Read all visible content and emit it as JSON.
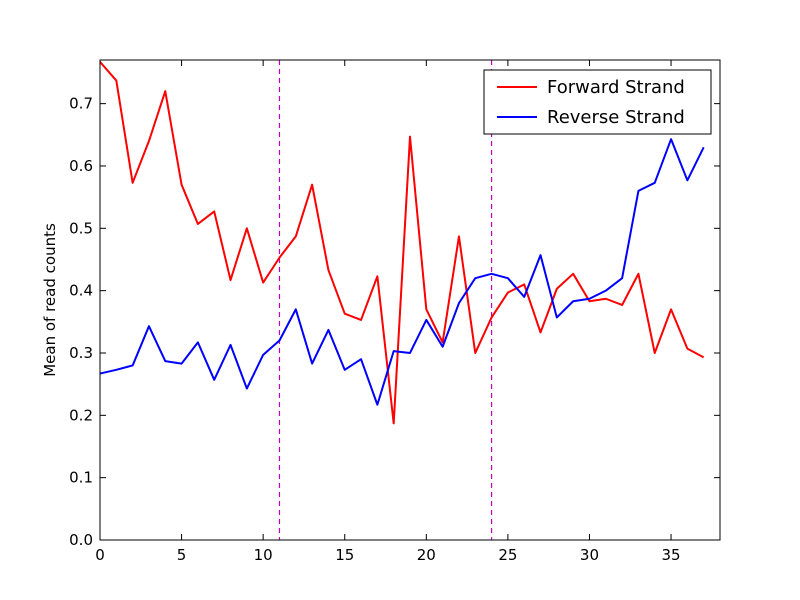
{
  "chart_data": {
    "type": "line",
    "title": "",
    "xlabel": "",
    "ylabel": "Mean of read counts",
    "xlim": [
      0,
      38
    ],
    "ylim": [
      0.0,
      0.77
    ],
    "xticks": [
      0,
      5,
      10,
      15,
      20,
      25,
      30,
      35
    ],
    "yticks": [
      0.0,
      0.1,
      0.2,
      0.3,
      0.4,
      0.5,
      0.6,
      0.7
    ],
    "xtick_labels": [
      "0",
      "5",
      "10",
      "15",
      "20",
      "25",
      "30",
      "35"
    ],
    "ytick_labels": [
      "0.0",
      "0.1",
      "0.2",
      "0.3",
      "0.4",
      "0.5",
      "0.6",
      "0.7"
    ],
    "grid": false,
    "legend_position": "top-right",
    "vlines": [
      {
        "x": 11,
        "color": "#bf00bf",
        "style": "dashed"
      },
      {
        "x": 24,
        "color": "#bf00bf",
        "style": "dashed"
      }
    ],
    "x": [
      0,
      1,
      2,
      3,
      4,
      5,
      6,
      7,
      8,
      9,
      10,
      11,
      12,
      13,
      14,
      15,
      16,
      17,
      18,
      19,
      20,
      21,
      22,
      23,
      24,
      25,
      26,
      27,
      28,
      29,
      30,
      31,
      32,
      33,
      34,
      35,
      36,
      37
    ],
    "series": [
      {
        "name": "Forward Strand",
        "color": "#ff0000",
        "values": [
          0.767,
          0.737,
          0.573,
          0.64,
          0.72,
          0.57,
          0.507,
          0.527,
          0.417,
          0.5,
          0.413,
          0.453,
          0.487,
          0.57,
          0.433,
          0.363,
          0.353,
          0.423,
          0.187,
          0.647,
          0.37,
          0.317,
          0.487,
          0.3,
          0.357,
          0.397,
          0.41,
          0.333,
          0.403,
          0.427,
          0.383,
          0.387,
          0.377,
          0.427,
          0.3,
          0.37,
          0.307,
          0.293
        ]
      },
      {
        "name": "Reverse Strand",
        "color": "#0000ff",
        "values": [
          0.267,
          0.273,
          0.28,
          0.343,
          0.287,
          0.283,
          0.317,
          0.257,
          0.313,
          0.243,
          0.297,
          0.32,
          0.37,
          0.283,
          0.337,
          0.273,
          0.29,
          0.217,
          0.303,
          0.3,
          0.353,
          0.31,
          0.38,
          0.42,
          0.427,
          0.42,
          0.39,
          0.457,
          0.357,
          0.383,
          0.387,
          0.4,
          0.42,
          0.56,
          0.573,
          0.643,
          0.577,
          0.63
        ]
      }
    ]
  }
}
